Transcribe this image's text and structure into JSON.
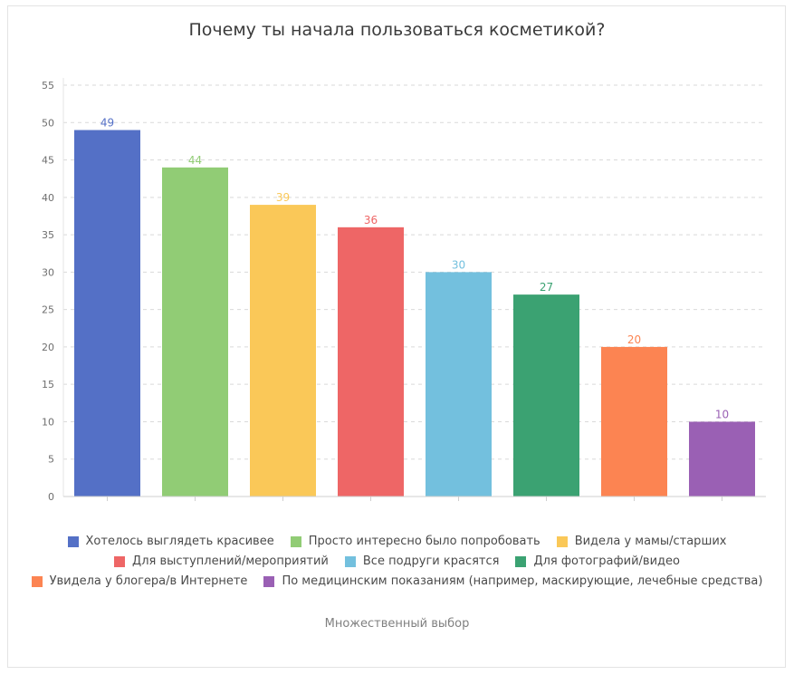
{
  "chart_data": {
    "type": "bar",
    "title": "Почему ты начала пользоваться косметикой?",
    "categories": [
      "Хотелось выглядеть красивее",
      "Просто интересно было попробовать",
      "Видела у мамы/старших",
      "Для выступлений/мероприятий",
      "Все подруги красятся",
      "Для фотографий/видео",
      "Увидела у блогера/в Интернете",
      "По медицинским показаниям (например, маскирующие, лечебные средства)"
    ],
    "values": [
      49,
      44,
      39,
      36,
      30,
      27,
      20,
      10
    ],
    "colors": [
      "#5470c6",
      "#91cc75",
      "#fac858",
      "#ee6666",
      "#73c0de",
      "#3ba272",
      "#fc8452",
      "#9a60b4"
    ],
    "ylim": [
      0,
      55
    ],
    "yticks": [
      0,
      5,
      10,
      15,
      20,
      25,
      30,
      35,
      40,
      45,
      50,
      55
    ],
    "grid": true,
    "legend_position": "bottom",
    "note": "Множественный выбор"
  }
}
